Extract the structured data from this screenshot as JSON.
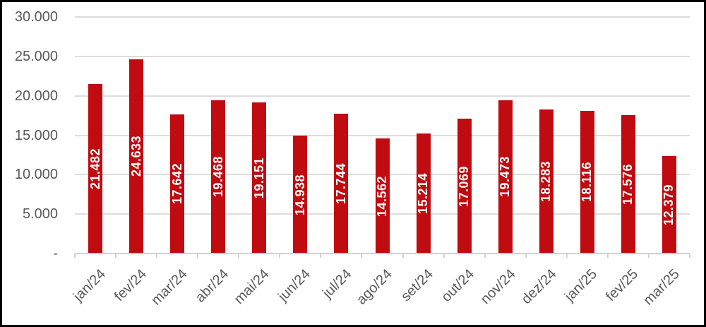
{
  "chart_data": {
    "type": "bar",
    "title": "",
    "categories": [
      "jan/24",
      "fev/24",
      "mar/24",
      "abr/24",
      "mai/24",
      "jun/24",
      "jul/24",
      "ago/24",
      "set/24",
      "out/24",
      "nov/24",
      "dez/24",
      "jan/25",
      "fev/25",
      "mar/25"
    ],
    "values": [
      21482,
      24633,
      17642,
      19468,
      19151,
      14938,
      17744,
      14562,
      15214,
      17069,
      19473,
      18283,
      18116,
      17576,
      12379
    ],
    "data_labels": [
      "21.482",
      "24.633",
      "17.642",
      "19.468",
      "19.151",
      "14.938",
      "17.744",
      "14.562",
      "15.214",
      "17.069",
      "19.473",
      "18.283",
      "18.116",
      "17.576",
      "12.379"
    ],
    "xlabel": "",
    "ylabel": "",
    "ylim": [
      0,
      30000
    ],
    "y_ticks": [
      {
        "value": 30000,
        "label": "30.000"
      },
      {
        "value": 25000,
        "label": "25.000"
      },
      {
        "value": 20000,
        "label": "20.000"
      },
      {
        "value": 15000,
        "label": "15.000"
      },
      {
        "value": 10000,
        "label": "10.000"
      },
      {
        "value": 5000,
        "label": "5.000"
      },
      {
        "value": 0,
        "label": "-"
      }
    ],
    "grid": true,
    "legend": "none",
    "data_label_position": "center-inside-vertical",
    "x_label_rotation_deg": 45,
    "colors": {
      "bar": "#C00B10",
      "data_label_text": "#FFFFFF",
      "axis_text": "#595959",
      "gridline": "#DCDCDC",
      "background": "#FFFFFF",
      "frame_border": "#000000"
    }
  }
}
